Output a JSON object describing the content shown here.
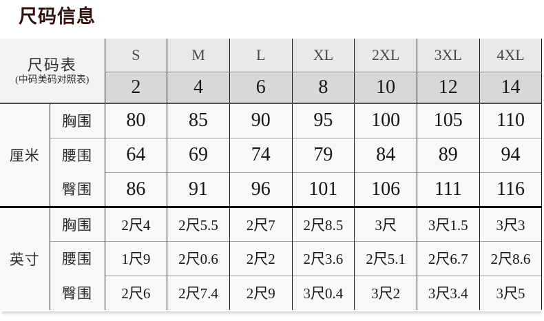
{
  "title": "尺码信息",
  "colors": {
    "title_text": "#30120f",
    "header_row1_bg": "#e9e9e9",
    "header_row2_bg": "#d8d8d8",
    "corner_bg": "#f3f3f3",
    "body_bg": "#f8f8f8",
    "grid_line": "#1c1c1c",
    "section_divider": "#0a0a0a"
  },
  "table": {
    "corner": {
      "line1": "尺码表",
      "line2": "(中码美码对照表)"
    },
    "size_labels": [
      "S",
      "M",
      "L",
      "XL",
      "2XL",
      "3XL",
      "4XL"
    ],
    "us_sizes": [
      "2",
      "4",
      "6",
      "8",
      "10",
      "12",
      "14"
    ],
    "sections": [
      {
        "unit": "厘米",
        "rows": [
          {
            "label": "胸围",
            "values": [
              "80",
              "85",
              "90",
              "95",
              "100",
              "105",
              "110"
            ]
          },
          {
            "label": "腰围",
            "values": [
              "64",
              "69",
              "74",
              "79",
              "84",
              "89",
              "94"
            ]
          },
          {
            "label": "臀围",
            "values": [
              "86",
              "91",
              "96",
              "101",
              "106",
              "111",
              "116"
            ]
          }
        ]
      },
      {
        "unit": "英寸",
        "rows": [
          {
            "label": "胸围",
            "values": [
              "2尺4",
              "2尺5.5",
              "2尺7",
              "2尺8.5",
              "3尺",
              "3尺1.5",
              "3尺3"
            ]
          },
          {
            "label": "腰围",
            "values": [
              "1尺9",
              "2尺0.6",
              "2尺2",
              "2尺3.6",
              "2尺5.1",
              "2尺6.7",
              "2尺8.6"
            ]
          },
          {
            "label": "臀围",
            "values": [
              "2尺6",
              "2尺7.4",
              "2尺9",
              "3尺0.4",
              "3尺2",
              "3尺3.4",
              "3尺5"
            ]
          }
        ]
      }
    ]
  }
}
